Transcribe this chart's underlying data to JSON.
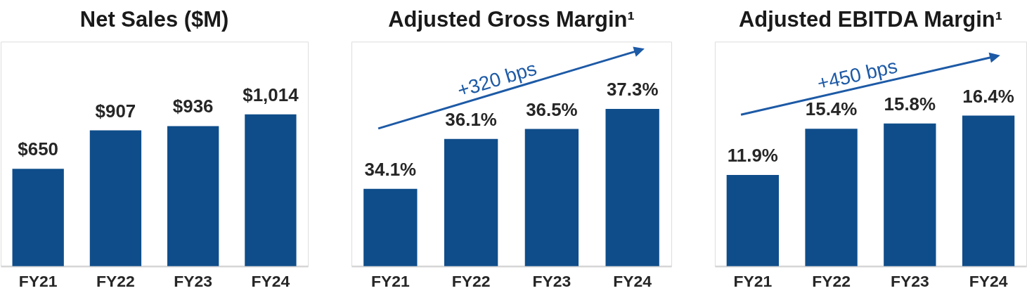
{
  "chart_data": [
    {
      "type": "bar",
      "title": "Net Sales ($M)",
      "categories": [
        "FY21",
        "FY22",
        "FY23",
        "FY24"
      ],
      "values": [
        650,
        907,
        936,
        1014
      ],
      "color": "#0f4d8a",
      "value_labels": [
        "$650",
        "$907",
        "$936",
        "$1,014"
      ],
      "ylim": [
        0,
        1500
      ],
      "tick_labels": "x"
    },
    {
      "type": "bar",
      "title": "Adjusted Gross Margin¹",
      "categories": [
        "FY21",
        "FY22",
        "FY23",
        "FY24"
      ],
      "values": [
        34.1,
        36.1,
        36.5,
        37.3
      ],
      "color": "#0f4d8a",
      "value_labels": [
        "34.1%",
        "36.1%",
        "36.5%",
        "37.3%"
      ],
      "ylim": [
        31,
        40
      ],
      "tick_labels": "x",
      "annotations": [
        "+320 bps"
      ]
    },
    {
      "type": "bar",
      "title": "Adjusted EBITDA Margin¹",
      "categories": [
        "FY21",
        "FY22",
        "FY23",
        "FY24"
      ],
      "values": [
        11.9,
        15.4,
        15.8,
        16.4
      ],
      "color": "#0f4d8a",
      "value_labels": [
        "11.9%",
        "15.4%",
        "15.8%",
        "16.4%"
      ],
      "ylim": [
        5,
        22
      ],
      "tick_labels": "x",
      "annotations": [
        "+450 bps"
      ]
    }
  ]
}
